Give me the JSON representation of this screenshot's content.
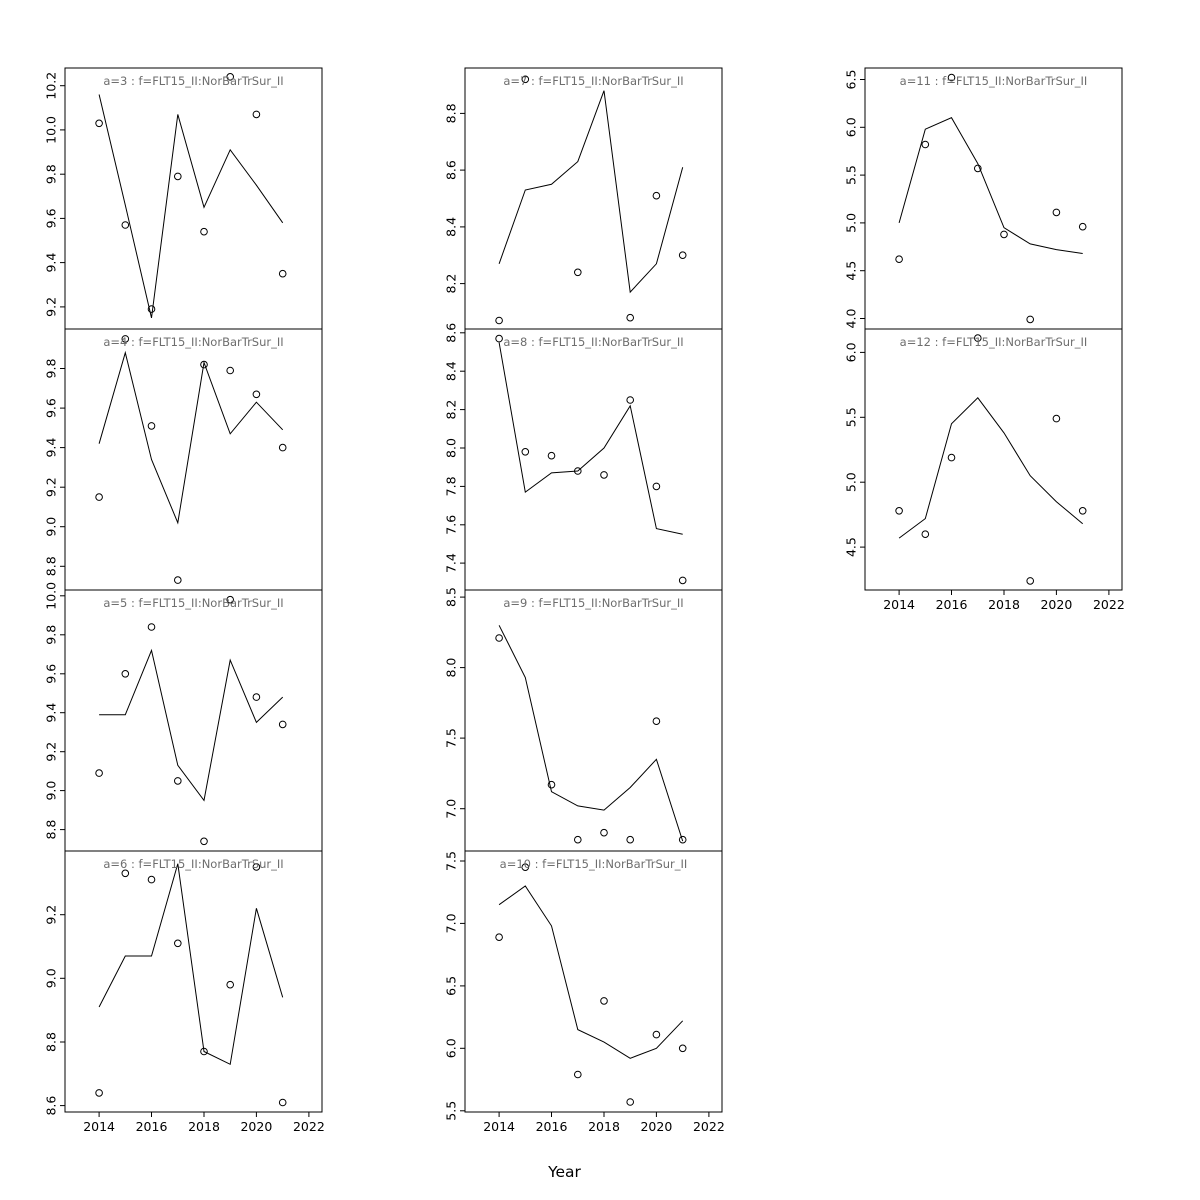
{
  "figure": {
    "background": "#ffffff",
    "xlabel": "Year"
  },
  "chart_data": {
    "type": "line",
    "layout_hint": "3x4 grid of small multiples (R-style panels), open-circle observations plus fitted line per panel, shared x axis 2014-2022, x labels only on bottom panel of each column",
    "xlabel": "Year",
    "xlim": [
      2012.7,
      2022.5
    ],
    "x_ticks": [
      2014,
      2016,
      2018,
      2020,
      2022
    ],
    "title_color": "#6e6e6e",
    "line_color": "#000000",
    "point_color": "#000000",
    "panels": [
      {
        "id": "a3",
        "col": 0,
        "row": 0,
        "x_axis": false,
        "title": "a=3  :  f=FLT15_II:NorBarTrSur_II",
        "ylim": [
          9.1,
          10.28
        ],
        "y_ticks": [
          9.2,
          9.4,
          9.6,
          9.8,
          10.0,
          10.2
        ],
        "line": {
          "x": [
            2014,
            2015,
            2016,
            2017,
            2018,
            2019,
            2020,
            2021
          ],
          "y": [
            10.16,
            9.66,
            9.15,
            10.07,
            9.65,
            9.91,
            9.75,
            9.58
          ]
        },
        "points": {
          "x": [
            2014,
            2015,
            2016,
            2017,
            2018,
            2019,
            2020,
            2021
          ],
          "y": [
            10.03,
            9.57,
            9.19,
            9.79,
            9.54,
            10.24,
            10.07,
            9.35
          ]
        }
      },
      {
        "id": "a4",
        "col": 0,
        "row": 1,
        "x_axis": false,
        "title": "a=4  :  f=FLT15_II:NorBarTrSur_II",
        "ylim": [
          8.68,
          10.0
        ],
        "y_ticks": [
          8.8,
          9.0,
          9.2,
          9.4,
          9.6,
          9.8
        ],
        "line": {
          "x": [
            2014,
            2015,
            2016,
            2017,
            2018,
            2019,
            2020,
            2021
          ],
          "y": [
            9.42,
            9.88,
            9.34,
            9.02,
            9.83,
            9.47,
            9.63,
            9.49
          ]
        },
        "points": {
          "x": [
            2014,
            2015,
            2016,
            2017,
            2018,
            2019,
            2020,
            2021
          ],
          "y": [
            9.15,
            9.95,
            9.51,
            8.73,
            9.82,
            9.79,
            9.67,
            9.4
          ]
        }
      },
      {
        "id": "a5",
        "col": 0,
        "row": 2,
        "x_axis": false,
        "title": "a=5  :  f=FLT15_II:NorBarTrSur_II",
        "ylim": [
          8.69,
          10.03
        ],
        "y_ticks": [
          8.8,
          9.0,
          9.2,
          9.4,
          9.6,
          9.8,
          10.0
        ],
        "line": {
          "x": [
            2014,
            2015,
            2016,
            2017,
            2018,
            2019,
            2020,
            2021
          ],
          "y": [
            9.39,
            9.39,
            9.72,
            9.13,
            8.95,
            9.67,
            9.35,
            9.48
          ]
        },
        "points": {
          "x": [
            2014,
            2015,
            2016,
            2017,
            2018,
            2019,
            2020,
            2021
          ],
          "y": [
            9.09,
            9.6,
            9.84,
            9.05,
            8.74,
            9.98,
            9.48,
            9.34
          ]
        }
      },
      {
        "id": "a6",
        "col": 0,
        "row": 3,
        "x_axis": true,
        "title": "a=6  :  f=FLT15_II:NorBarTrSur_II",
        "ylim": [
          8.58,
          9.4
        ],
        "y_ticks": [
          8.6,
          8.8,
          9.0,
          9.2
        ],
        "line": {
          "x": [
            2014,
            2015,
            2016,
            2017,
            2018,
            2019,
            2020,
            2021
          ],
          "y": [
            8.91,
            9.07,
            9.07,
            9.36,
            8.77,
            8.73,
            9.22,
            8.94
          ]
        },
        "points": {
          "x": [
            2014,
            2015,
            2016,
            2017,
            2018,
            2019,
            2020,
            2021
          ],
          "y": [
            8.64,
            9.33,
            9.31,
            9.11,
            8.77,
            8.98,
            9.35,
            8.61
          ]
        }
      },
      {
        "id": "a7",
        "col": 1,
        "row": 0,
        "x_axis": false,
        "title": "a=7  :  f=FLT15_II:NorBarTrSur_II",
        "ylim": [
          8.04,
          8.96
        ],
        "y_ticks": [
          8.2,
          8.4,
          8.6,
          8.8
        ],
        "line": {
          "x": [
            2014,
            2015,
            2016,
            2017,
            2018,
            2019,
            2020,
            2021
          ],
          "y": [
            8.27,
            8.53,
            8.55,
            8.63,
            8.88,
            8.17,
            8.27,
            8.61
          ]
        },
        "points": {
          "x": [
            2014,
            2015,
            2017,
            2019,
            2020,
            2021
          ],
          "y": [
            8.07,
            8.92,
            8.24,
            8.08,
            8.51,
            8.3
          ]
        }
      },
      {
        "id": "a8",
        "col": 1,
        "row": 1,
        "x_axis": false,
        "title": "a=8  :  f=FLT15_II:NorBarTrSur_II",
        "ylim": [
          7.26,
          8.62
        ],
        "y_ticks": [
          7.4,
          7.6,
          7.8,
          8.0,
          8.2,
          8.4,
          8.6
        ],
        "line": {
          "x": [
            2014,
            2015,
            2016,
            2017,
            2018,
            2019,
            2020,
            2021
          ],
          "y": [
            8.55,
            7.77,
            7.87,
            7.88,
            8.0,
            8.22,
            7.58,
            7.55
          ]
        },
        "points": {
          "x": [
            2014,
            2015,
            2016,
            2017,
            2018,
            2019,
            2020,
            2021
          ],
          "y": [
            8.57,
            7.98,
            7.96,
            7.88,
            7.86,
            8.25,
            7.8,
            7.31
          ]
        }
      },
      {
        "id": "a9",
        "col": 1,
        "row": 2,
        "x_axis": false,
        "title": "a=9  :  f=FLT15_II:NorBarTrSur_II",
        "ylim": [
          6.7,
          8.55
        ],
        "y_ticks": [
          7.0,
          7.5,
          8.0,
          8.5
        ],
        "line": {
          "x": [
            2014,
            2015,
            2016,
            2017,
            2018,
            2019,
            2020,
            2021
          ],
          "y": [
            8.3,
            7.93,
            7.12,
            7.02,
            6.99,
            7.15,
            7.35,
            6.77
          ]
        },
        "points": {
          "x": [
            2014,
            2016,
            2017,
            2018,
            2019,
            2020,
            2021
          ],
          "y": [
            8.21,
            7.17,
            6.78,
            6.83,
            6.78,
            7.62,
            6.78
          ]
        }
      },
      {
        "id": "a10",
        "col": 1,
        "row": 3,
        "x_axis": true,
        "title": "a=10  :  f=FLT15_II:NorBarTrSur_II",
        "ylim": [
          5.49,
          7.58
        ],
        "y_ticks": [
          5.5,
          6.0,
          6.5,
          7.0,
          7.5
        ],
        "line": {
          "x": [
            2014,
            2015,
            2016,
            2017,
            2018,
            2019,
            2020,
            2021
          ],
          "y": [
            7.15,
            7.3,
            6.98,
            6.15,
            6.05,
            5.92,
            6.0,
            6.22
          ]
        },
        "points": {
          "x": [
            2014,
            2015,
            2017,
            2018,
            2019,
            2020,
            2021
          ],
          "y": [
            6.89,
            7.45,
            5.79,
            6.38,
            5.57,
            6.11,
            6.0
          ]
        }
      },
      {
        "id": "a11",
        "col": 2,
        "row": 0,
        "x_axis": false,
        "title": "a=11  :  f=FLT15_II:NorBarTrSur_II",
        "ylim": [
          3.89,
          6.62
        ],
        "y_ticks": [
          4.0,
          4.5,
          5.0,
          5.5,
          6.0,
          6.5
        ],
        "line": {
          "x": [
            2014,
            2015,
            2016,
            2017,
            2018,
            2019,
            2020,
            2021
          ],
          "y": [
            5.0,
            5.98,
            6.1,
            5.62,
            4.95,
            4.78,
            4.72,
            4.68
          ]
        },
        "points": {
          "x": [
            2014,
            2015,
            2016,
            2017,
            2018,
            2019,
            2020,
            2021
          ],
          "y": [
            4.62,
            5.82,
            6.52,
            5.57,
            4.88,
            3.99,
            5.11,
            4.96
          ]
        }
      },
      {
        "id": "a12",
        "col": 2,
        "row": 1,
        "x_axis": true,
        "title": "a=12  :  f=FLT15_II:NorBarTrSur_II",
        "ylim": [
          4.17,
          6.18
        ],
        "y_ticks": [
          4.5,
          5.0,
          5.5,
          6.0
        ],
        "line": {
          "x": [
            2014,
            2015,
            2016,
            2017,
            2018,
            2019,
            2020,
            2021
          ],
          "y": [
            4.57,
            4.72,
            5.45,
            5.65,
            5.38,
            5.05,
            4.85,
            4.68
          ]
        },
        "points": {
          "x": [
            2014,
            2015,
            2016,
            2017,
            2019,
            2020,
            2021
          ],
          "y": [
            4.78,
            4.6,
            5.19,
            6.11,
            4.24,
            5.49,
            4.78
          ]
        }
      }
    ]
  }
}
